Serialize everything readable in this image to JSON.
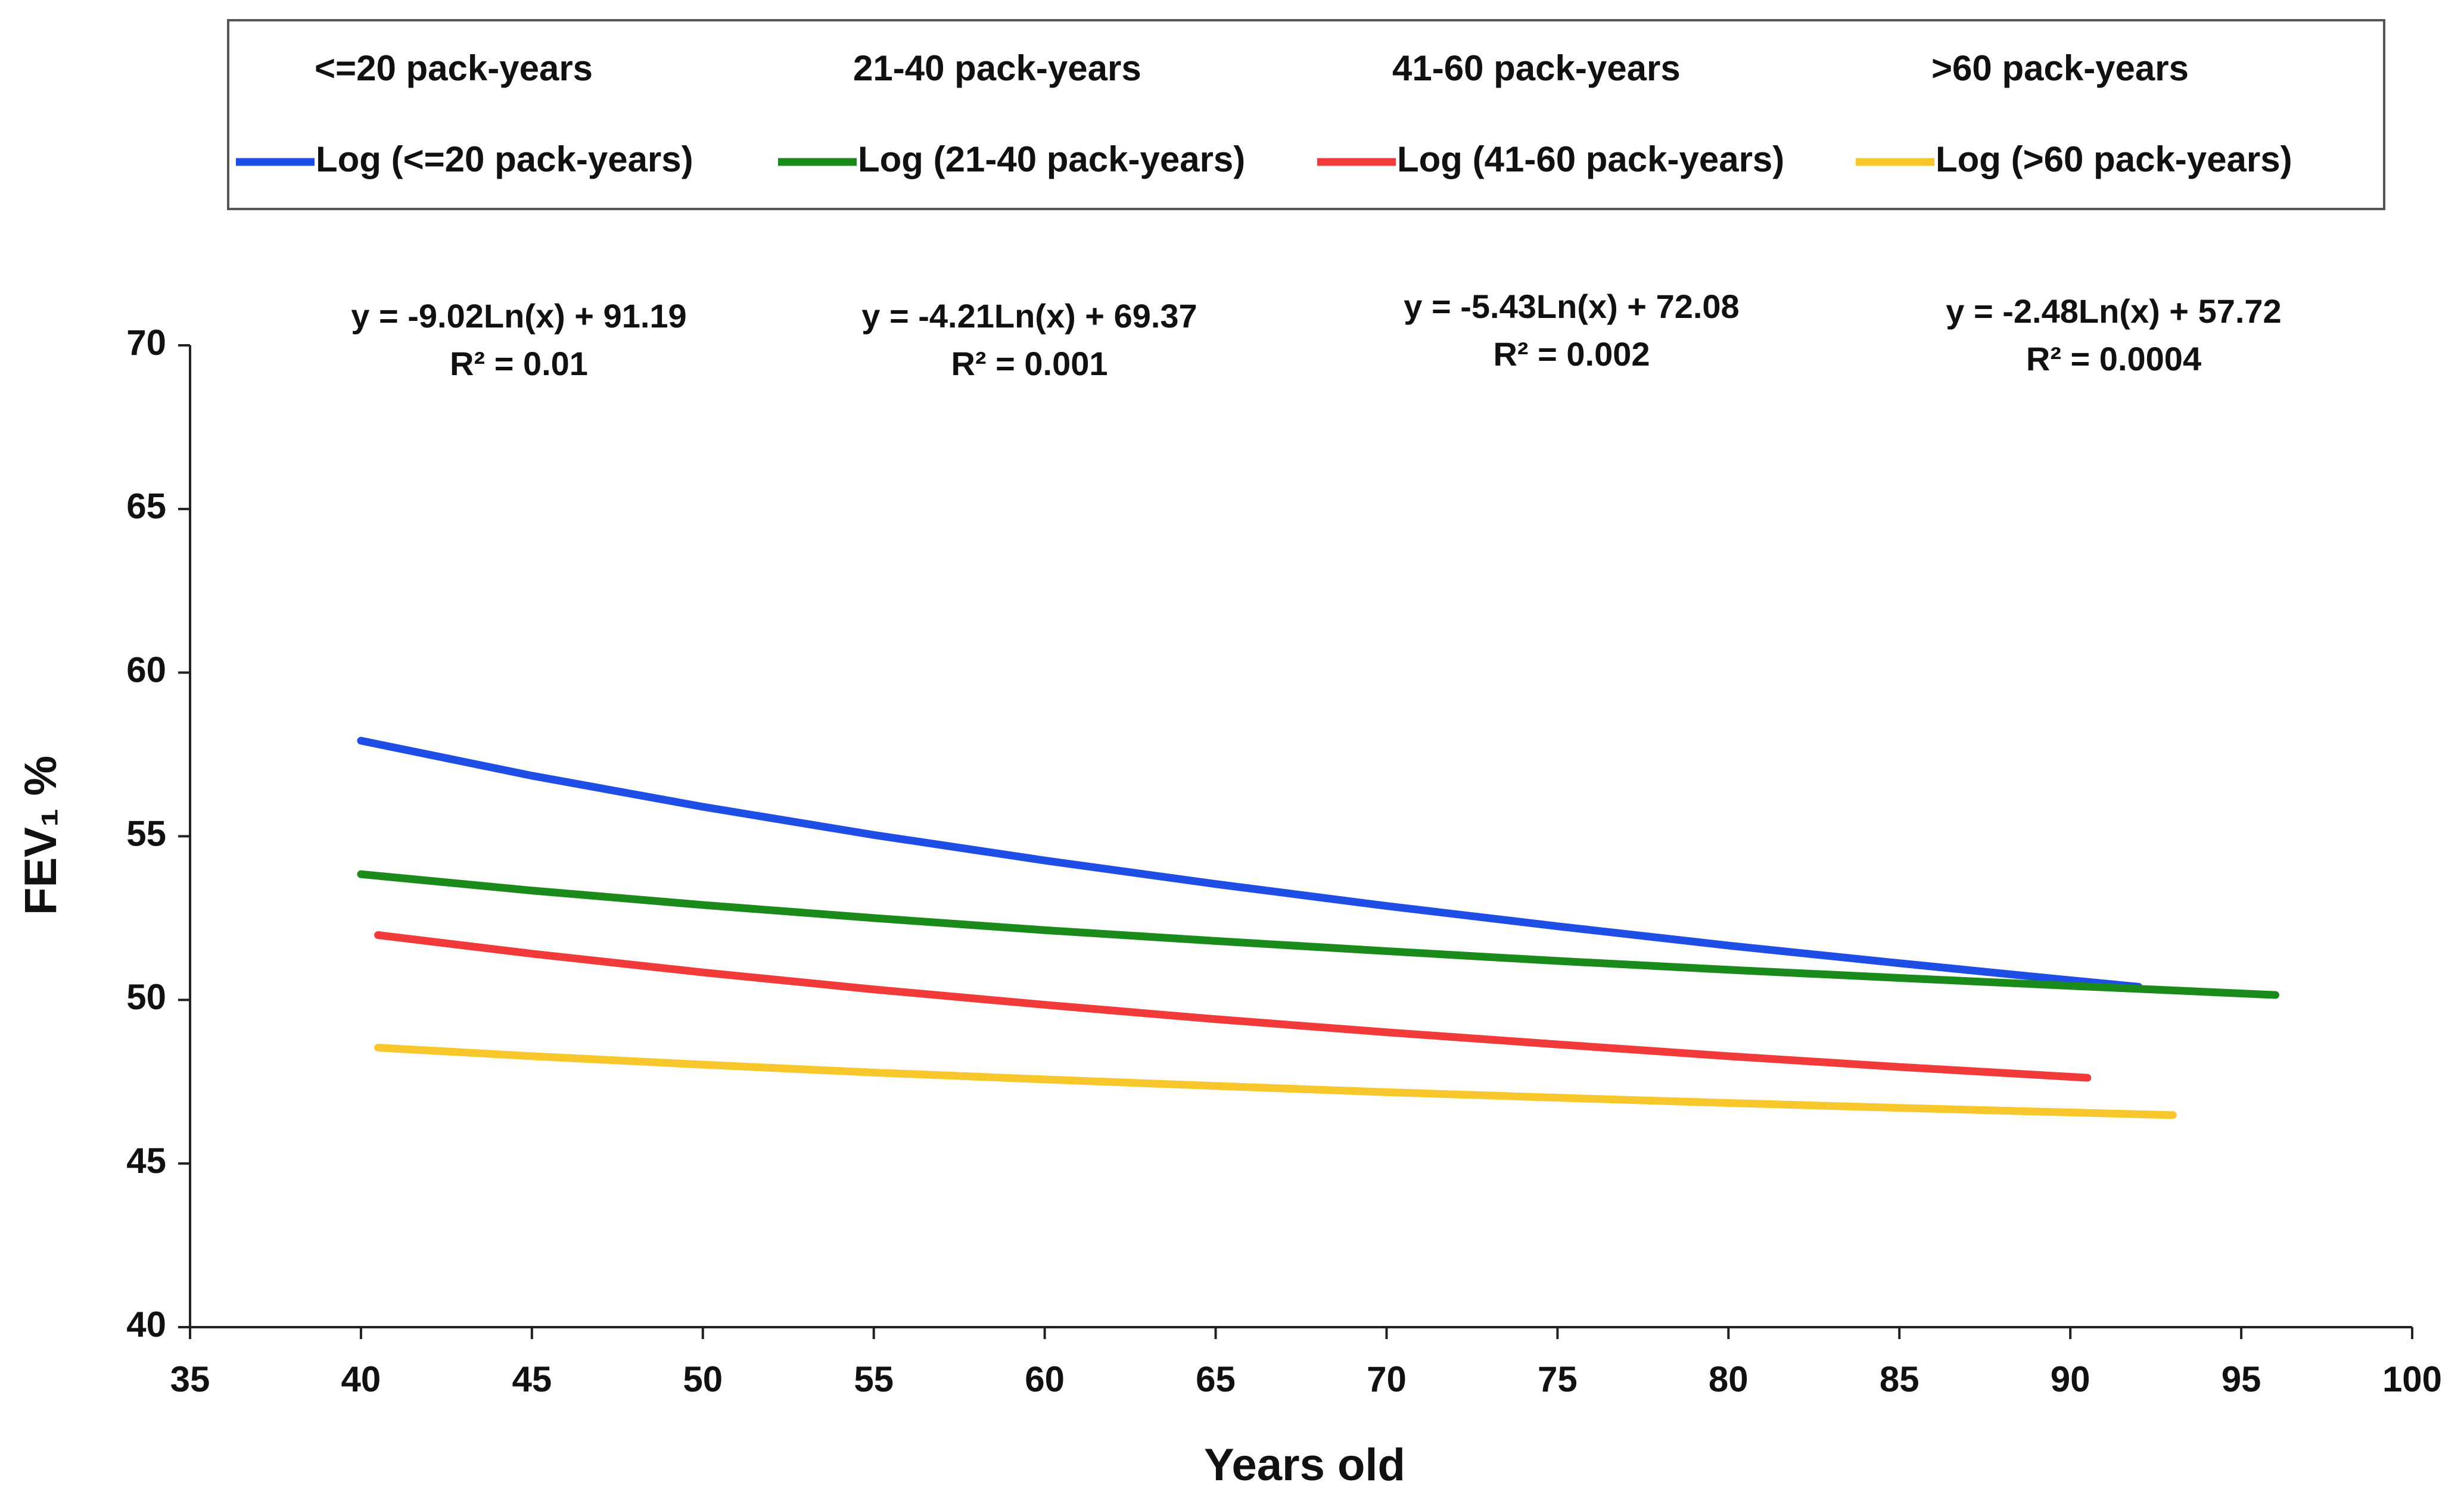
{
  "chart_data": {
    "type": "line",
    "xlabel": "Years old",
    "ylabel": "FEV₁ %",
    "xlim": [
      35,
      100
    ],
    "xticks": [
      35,
      40,
      45,
      50,
      55,
      60,
      65,
      70,
      75,
      80,
      85,
      90,
      95,
      100
    ],
    "ylim": [
      40,
      70
    ],
    "yticks": [
      40,
      45,
      50,
      55,
      60,
      65,
      70
    ],
    "grid": false,
    "legend": "top",
    "series": [
      {
        "name": "<=20 pack-years",
        "trendline_name": "Log (<=20 pack-years)",
        "color": "#1e4ee6",
        "equation": "y = -9.02Ln(x)  + 91.19",
        "r_squared": "R² = 0.01",
        "x": [
          40,
          45,
          50,
          55,
          60,
          65,
          70,
          75,
          80,
          85,
          90,
          92
        ],
        "values": [
          57.92,
          56.85,
          55.9,
          55.04,
          54.26,
          53.54,
          52.87,
          52.25,
          51.66,
          51.12,
          50.6,
          50.4
        ]
      },
      {
        "name": "21-40 pack-years",
        "trendline_name": "Log (21-40 pack-years)",
        "color": "#1a8a1a",
        "equation": "y = -4.21Ln(x)  + 69.37",
        "r_squared": "R² = 0.001",
        "x": [
          40,
          45,
          50,
          55,
          60,
          65,
          70,
          75,
          80,
          85,
          90,
          96
        ],
        "values": [
          53.84,
          53.34,
          52.9,
          52.5,
          52.13,
          51.8,
          51.49,
          51.19,
          50.92,
          50.67,
          50.43,
          50.15
        ]
      },
      {
        "name": "41-60 pack-years",
        "trendline_name": "Log (41-60 pack-years)",
        "color": "#f23a3a",
        "equation": "y = -5.43Ln(x)  + 72.08",
        "r_squared": "R² = 0.002",
        "x": [
          40.5,
          45,
          50,
          55,
          60,
          65,
          70,
          75,
          80,
          85,
          90,
          90.5
        ],
        "values": [
          51.98,
          51.41,
          50.84,
          50.32,
          49.85,
          49.41,
          49.01,
          48.64,
          48.28,
          47.95,
          47.65,
          47.62
        ]
      },
      {
        "name": ">60 pack-years",
        "trendline_name": "Log (>60 pack-years)",
        "color": "#f7c72c",
        "equation": "y = -2.48Ln(x)  + 57.72",
        "r_squared": "R² = 0.0004",
        "x": [
          40.5,
          45,
          50,
          55,
          60,
          65,
          70,
          75,
          80,
          85,
          90,
          93
        ],
        "values": [
          48.54,
          48.28,
          48.02,
          47.78,
          47.57,
          47.37,
          47.18,
          47.01,
          46.85,
          46.7,
          46.56,
          46.48
        ]
      }
    ]
  }
}
